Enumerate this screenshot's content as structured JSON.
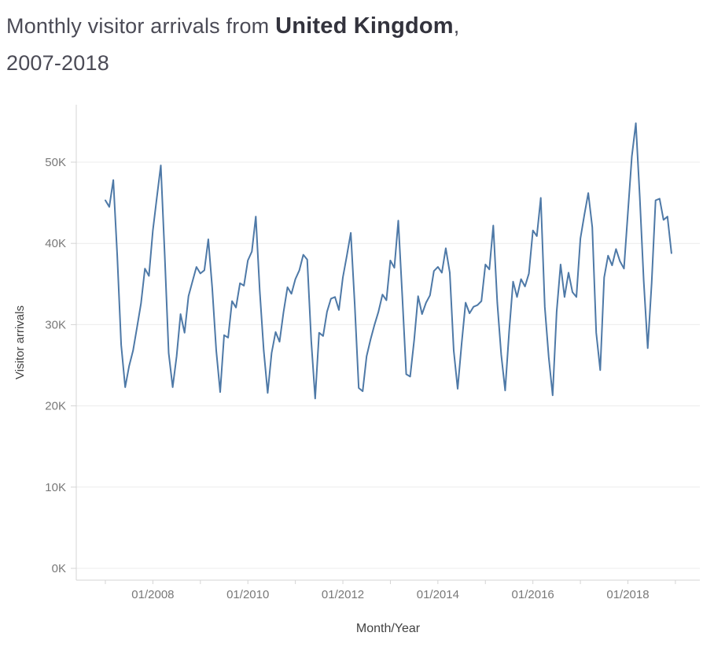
{
  "page": {
    "background": "#ffffff"
  },
  "title": {
    "prefix": "Monthly visitor arrivals from ",
    "highlight": "United Kingdom",
    "suffix": ",",
    "line2": "2007-2018"
  },
  "chart_data": {
    "type": "line",
    "title": "Monthly visitor arrivals from United Kingdom, 2007-2018",
    "xlabel": "Month/Year",
    "ylabel": "Visitor arrivals",
    "x_unit": "month",
    "x_start": "2007-01",
    "x_end": "2018-12",
    "x_tick_labels": [
      "01/2008",
      "01/2010",
      "01/2012",
      "01/2014",
      "01/2016",
      "01/2018"
    ],
    "x_minor_tick_years": [
      2007,
      2008,
      2009,
      2010,
      2011,
      2012,
      2013,
      2014,
      2015,
      2016,
      2017,
      2018,
      2019
    ],
    "y_ticks": [
      {
        "value": 0,
        "label": "0K"
      },
      {
        "value": 10,
        "label": "10K"
      },
      {
        "value": 20,
        "label": "20K"
      },
      {
        "value": 30,
        "label": "30K"
      },
      {
        "value": 40,
        "label": "40K"
      },
      {
        "value": 50,
        "label": "50K"
      }
    ],
    "ylim": [
      0,
      57
    ],
    "grid": "horizontal",
    "legend": "none",
    "series": [
      {
        "name": "Visitor arrivals from United Kingdom",
        "unit": "thousands",
        "monthly_values_thousands": [
          45.3,
          44.5,
          47.8,
          38.5,
          27.5,
          22.3,
          24.9,
          26.8,
          29.7,
          32.6,
          36.9,
          36.0,
          41.6,
          45.6,
          49.6,
          38.5,
          26.5,
          22.3,
          26.1,
          31.3,
          29.0,
          33.5,
          35.3,
          37.1,
          36.3,
          36.7,
          40.5,
          34.5,
          26.8,
          21.7,
          28.7,
          28.4,
          32.9,
          32.1,
          35.1,
          34.8,
          37.9,
          39.0,
          43.3,
          34.2,
          26.8,
          21.6,
          26.5,
          29.1,
          27.9,
          31.5,
          34.6,
          33.8,
          35.6,
          36.7,
          38.6,
          38.0,
          28.0,
          20.9,
          29.0,
          28.6,
          31.6,
          33.2,
          33.4,
          31.8,
          35.8,
          38.5,
          41.3,
          32.5,
          22.2,
          21.8,
          26.1,
          28.2,
          30.0,
          31.6,
          33.7,
          33.0,
          37.9,
          37.0,
          42.8,
          33.5,
          23.9,
          23.6,
          28.1,
          33.5,
          31.3,
          32.7,
          33.6,
          36.6,
          37.1,
          36.4,
          39.4,
          36.4,
          26.8,
          22.1,
          27.7,
          32.7,
          31.4,
          32.2,
          32.4,
          32.9,
          37.4,
          36.8,
          42.2,
          32.7,
          26.3,
          21.9,
          29.2,
          35.3,
          33.4,
          35.6,
          34.7,
          36.3,
          41.6,
          40.9,
          45.6,
          32.2,
          26.0,
          21.3,
          31.6,
          37.4,
          33.4,
          36.4,
          34.0,
          33.4,
          40.6,
          43.5,
          46.2,
          42.0,
          29.0,
          24.4,
          35.8,
          38.5,
          37.3,
          39.3,
          37.8,
          36.9,
          43.8,
          50.7,
          54.8,
          45.7,
          35.4,
          27.1,
          35.1,
          45.3,
          45.5,
          42.9,
          43.3,
          38.8
        ]
      }
    ],
    "line_color": "#4e79a7"
  },
  "colors": {
    "accent": "#4e79a7",
    "grid": "#ececec",
    "axis": "#d4d4d4",
    "tick_label": "#787878",
    "axis_title": "#424242",
    "title_text": "#4b4b56",
    "title_highlight": "#33333d"
  }
}
